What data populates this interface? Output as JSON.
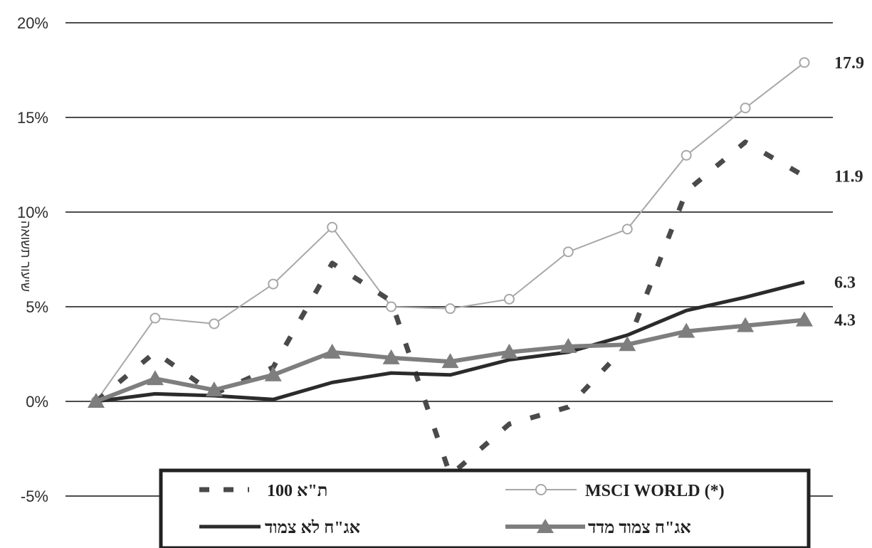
{
  "chart_data": {
    "type": "line",
    "ylabel": "שיעור תשואה",
    "yticks": [
      "-5%",
      "0%",
      "5%",
      "10%",
      "15%",
      "20%"
    ],
    "ylim": [
      -5,
      20
    ],
    "x_count": 13,
    "grid": "horizontal",
    "series": [
      {
        "name": "ת\"א 100",
        "style": "dashed",
        "color": "#4a4a4a",
        "values": [
          0,
          2.6,
          0.4,
          1.8,
          7.3,
          5.3,
          -3.9,
          -1.2,
          -0.3,
          3.0,
          11.1,
          13.7,
          11.9
        ]
      },
      {
        "name": "MSCI WORLD (*)",
        "style": "circles",
        "color": "#a8a8a8",
        "values": [
          0,
          4.4,
          4.1,
          6.2,
          9.2,
          5.0,
          4.9,
          5.4,
          7.9,
          9.1,
          13.0,
          15.5,
          17.9
        ]
      },
      {
        "name": "אג\"ח לא צמוד",
        "style": "solid",
        "color": "#2b2b2b",
        "values": [
          0,
          0.4,
          0.3,
          0.1,
          1.0,
          1.5,
          1.4,
          2.2,
          2.6,
          3.5,
          4.8,
          5.5,
          6.3
        ]
      },
      {
        "name": "אג\"ח צמוד מדד",
        "style": "triangles",
        "color": "#7e7e7e",
        "values": [
          0,
          1.2,
          0.6,
          1.4,
          2.6,
          2.3,
          2.1,
          2.6,
          2.9,
          3.0,
          3.7,
          4.0,
          4.3
        ]
      }
    ],
    "end_labels": [
      "17.9",
      "11.9",
      "6.3",
      "4.3"
    ],
    "legend": {
      "placement": "bottom",
      "items": [
        {
          "label": "100 ת\"א",
          "series": 0
        },
        {
          "label": "MSCI WORLD (*)",
          "series": 1
        },
        {
          "label": "אג\"ח לא צמוד",
          "series": 2
        },
        {
          "label": "אג\"ח צמוד מדד",
          "series": 3
        }
      ]
    }
  }
}
